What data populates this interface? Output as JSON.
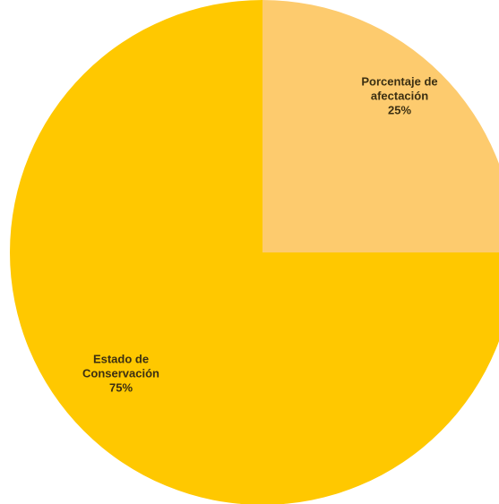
{
  "chart_data": {
    "type": "pie",
    "slices": [
      {
        "label_lines": [
          "Porcentaje de",
          "afectación"
        ],
        "percent_label": "25%",
        "value": 25,
        "color": "#fdcb6e"
      },
      {
        "label_lines": [
          "Estado de",
          "Conservación"
        ],
        "percent_label": "75%",
        "value": 75,
        "color": "#ffc800"
      }
    ],
    "start_angle": "12 o'clock",
    "direction": "clockwise",
    "legend": "none",
    "title": ""
  }
}
